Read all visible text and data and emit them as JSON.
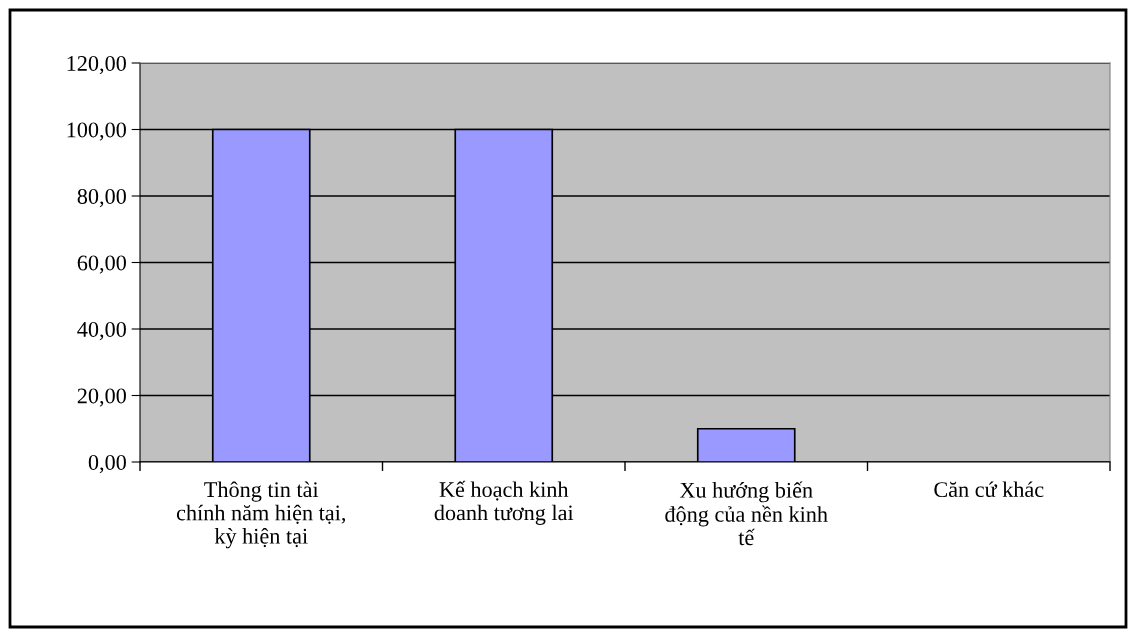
{
  "chart_data": {
    "type": "bar",
    "categories": [
      "Thông tin tài\nchính năm hiện tại,\nkỳ hiện tại",
      "Kế hoạch kinh\ndoanh tương lai",
      "Xu hướng biến\nđộng của nền kinh\ntế",
      "Căn cứ khác"
    ],
    "values": [
      100,
      100,
      10,
      0
    ],
    "color": "#9999ff",
    "ylim": [
      0,
      120
    ],
    "yticks": [
      {
        "value": 0,
        "label": "0,00"
      },
      {
        "value": 20,
        "label": "20,00"
      },
      {
        "value": 40,
        "label": "40,00"
      },
      {
        "value": 60,
        "label": "60,00"
      },
      {
        "value": 80,
        "label": "80,00"
      },
      {
        "value": 100,
        "label": "100,00"
      },
      {
        "value": 120,
        "label": "120,00"
      }
    ],
    "grid": "y",
    "legend": false
  }
}
